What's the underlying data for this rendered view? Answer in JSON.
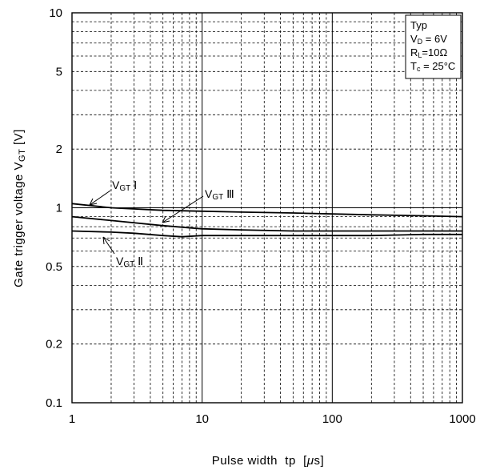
{
  "chart_data": {
    "type": "line",
    "xscale": "log",
    "yscale": "log",
    "xlim": [
      1,
      1000
    ],
    "ylim": [
      0.1,
      10
    ],
    "grid": true,
    "xlabel": "Pulse width tp [μs]",
    "ylabel": "Gate trigger voltage VGT [V]",
    "xticks": [
      1,
      10,
      100,
      1000
    ],
    "xtick_labels": [
      "1",
      "10",
      "100",
      "1000"
    ],
    "yticks": [
      0.1,
      0.2,
      0.5,
      1,
      2,
      5,
      10
    ],
    "ytick_labels": [
      "0.1",
      "0.2",
      "0.5",
      "1",
      "2",
      "5",
      "10"
    ],
    "conditions_box": {
      "position": "top-right",
      "lines": [
        "Typ",
        "VD = 6V",
        "RL=10Ω",
        "Tc = 25°C"
      ]
    },
    "series": [
      {
        "name": "VGT Ⅰ",
        "x": [
          1,
          2,
          5,
          10,
          20,
          50,
          100,
          200,
          500,
          1000
        ],
        "y": [
          1.05,
          1.0,
          0.97,
          0.96,
          0.95,
          0.94,
          0.93,
          0.92,
          0.91,
          0.9
        ]
      },
      {
        "name": "VGT Ⅱ",
        "x": [
          1,
          2,
          3,
          5,
          7,
          10,
          20,
          50,
          100,
          200,
          500,
          1000
        ],
        "y": [
          0.76,
          0.75,
          0.74,
          0.72,
          0.71,
          0.72,
          0.72,
          0.72,
          0.72,
          0.72,
          0.73,
          0.73
        ]
      },
      {
        "name": "VGT Ⅲ",
        "x": [
          1,
          2,
          5,
          10,
          20,
          50,
          100,
          200,
          500,
          1000
        ],
        "y": [
          0.9,
          0.86,
          0.81,
          0.78,
          0.77,
          0.76,
          0.76,
          0.76,
          0.76,
          0.76
        ]
      }
    ],
    "annotations": [
      {
        "label_parts": [
          "V",
          "GT",
          " Ⅰ"
        ],
        "series": "VGT Ⅰ"
      },
      {
        "label_parts": [
          "V",
          "GT",
          " Ⅲ"
        ],
        "series": "VGT Ⅲ"
      },
      {
        "label_parts": [
          "V",
          "GT",
          " Ⅱ"
        ],
        "series": "VGT Ⅱ"
      }
    ],
    "ylabel_parts": [
      "Gate trigger voltage V",
      "GT",
      " [V]"
    ],
    "xlabel_parts": [
      "Pulse width  tp  [",
      "μ",
      "s]"
    ],
    "box_parts": [
      [
        "Typ"
      ],
      [
        "V",
        "D",
        " = 6V"
      ],
      [
        "R",
        "L",
        "=10Ω"
      ],
      [
        "T",
        "c",
        " = 25°C"
      ]
    ]
  }
}
